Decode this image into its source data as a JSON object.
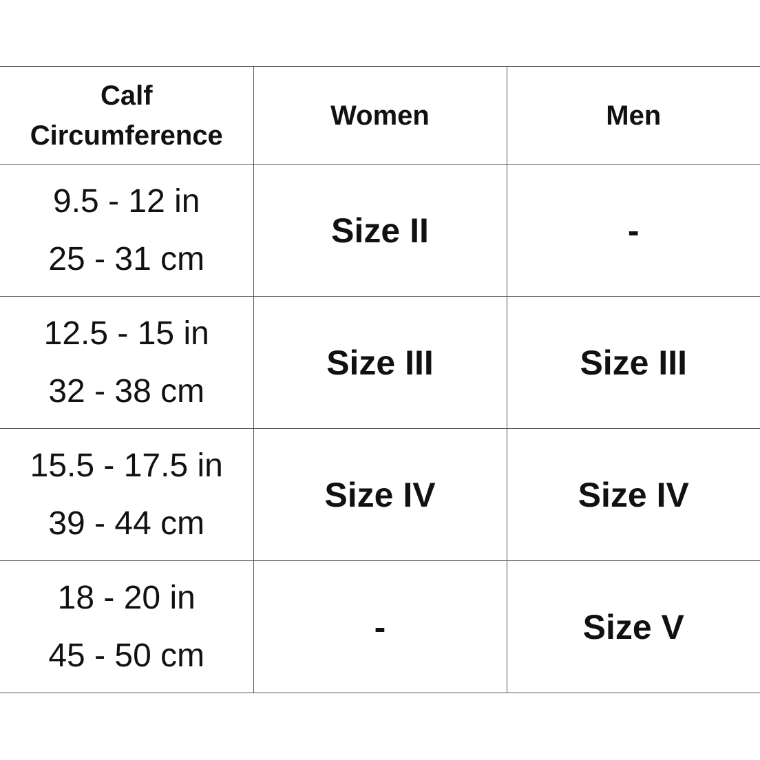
{
  "headers": [
    "Calf Circumference",
    "Women",
    "Men"
  ],
  "rows": [
    {
      "in": "9.5 - 12 in",
      "cm": "25 - 31 cm",
      "women": "Size II",
      "men": "-"
    },
    {
      "in": "12.5 - 15 in",
      "cm": "32 - 38 cm",
      "women": "Size III",
      "men": "Size III"
    },
    {
      "in": "15.5 - 17.5 in",
      "cm": "39 - 44 cm",
      "women": "Size IV",
      "men": "Size IV"
    },
    {
      "in": "18 - 20 in",
      "cm": "45 - 50 cm",
      "women": "-",
      "men": "Size V"
    }
  ]
}
